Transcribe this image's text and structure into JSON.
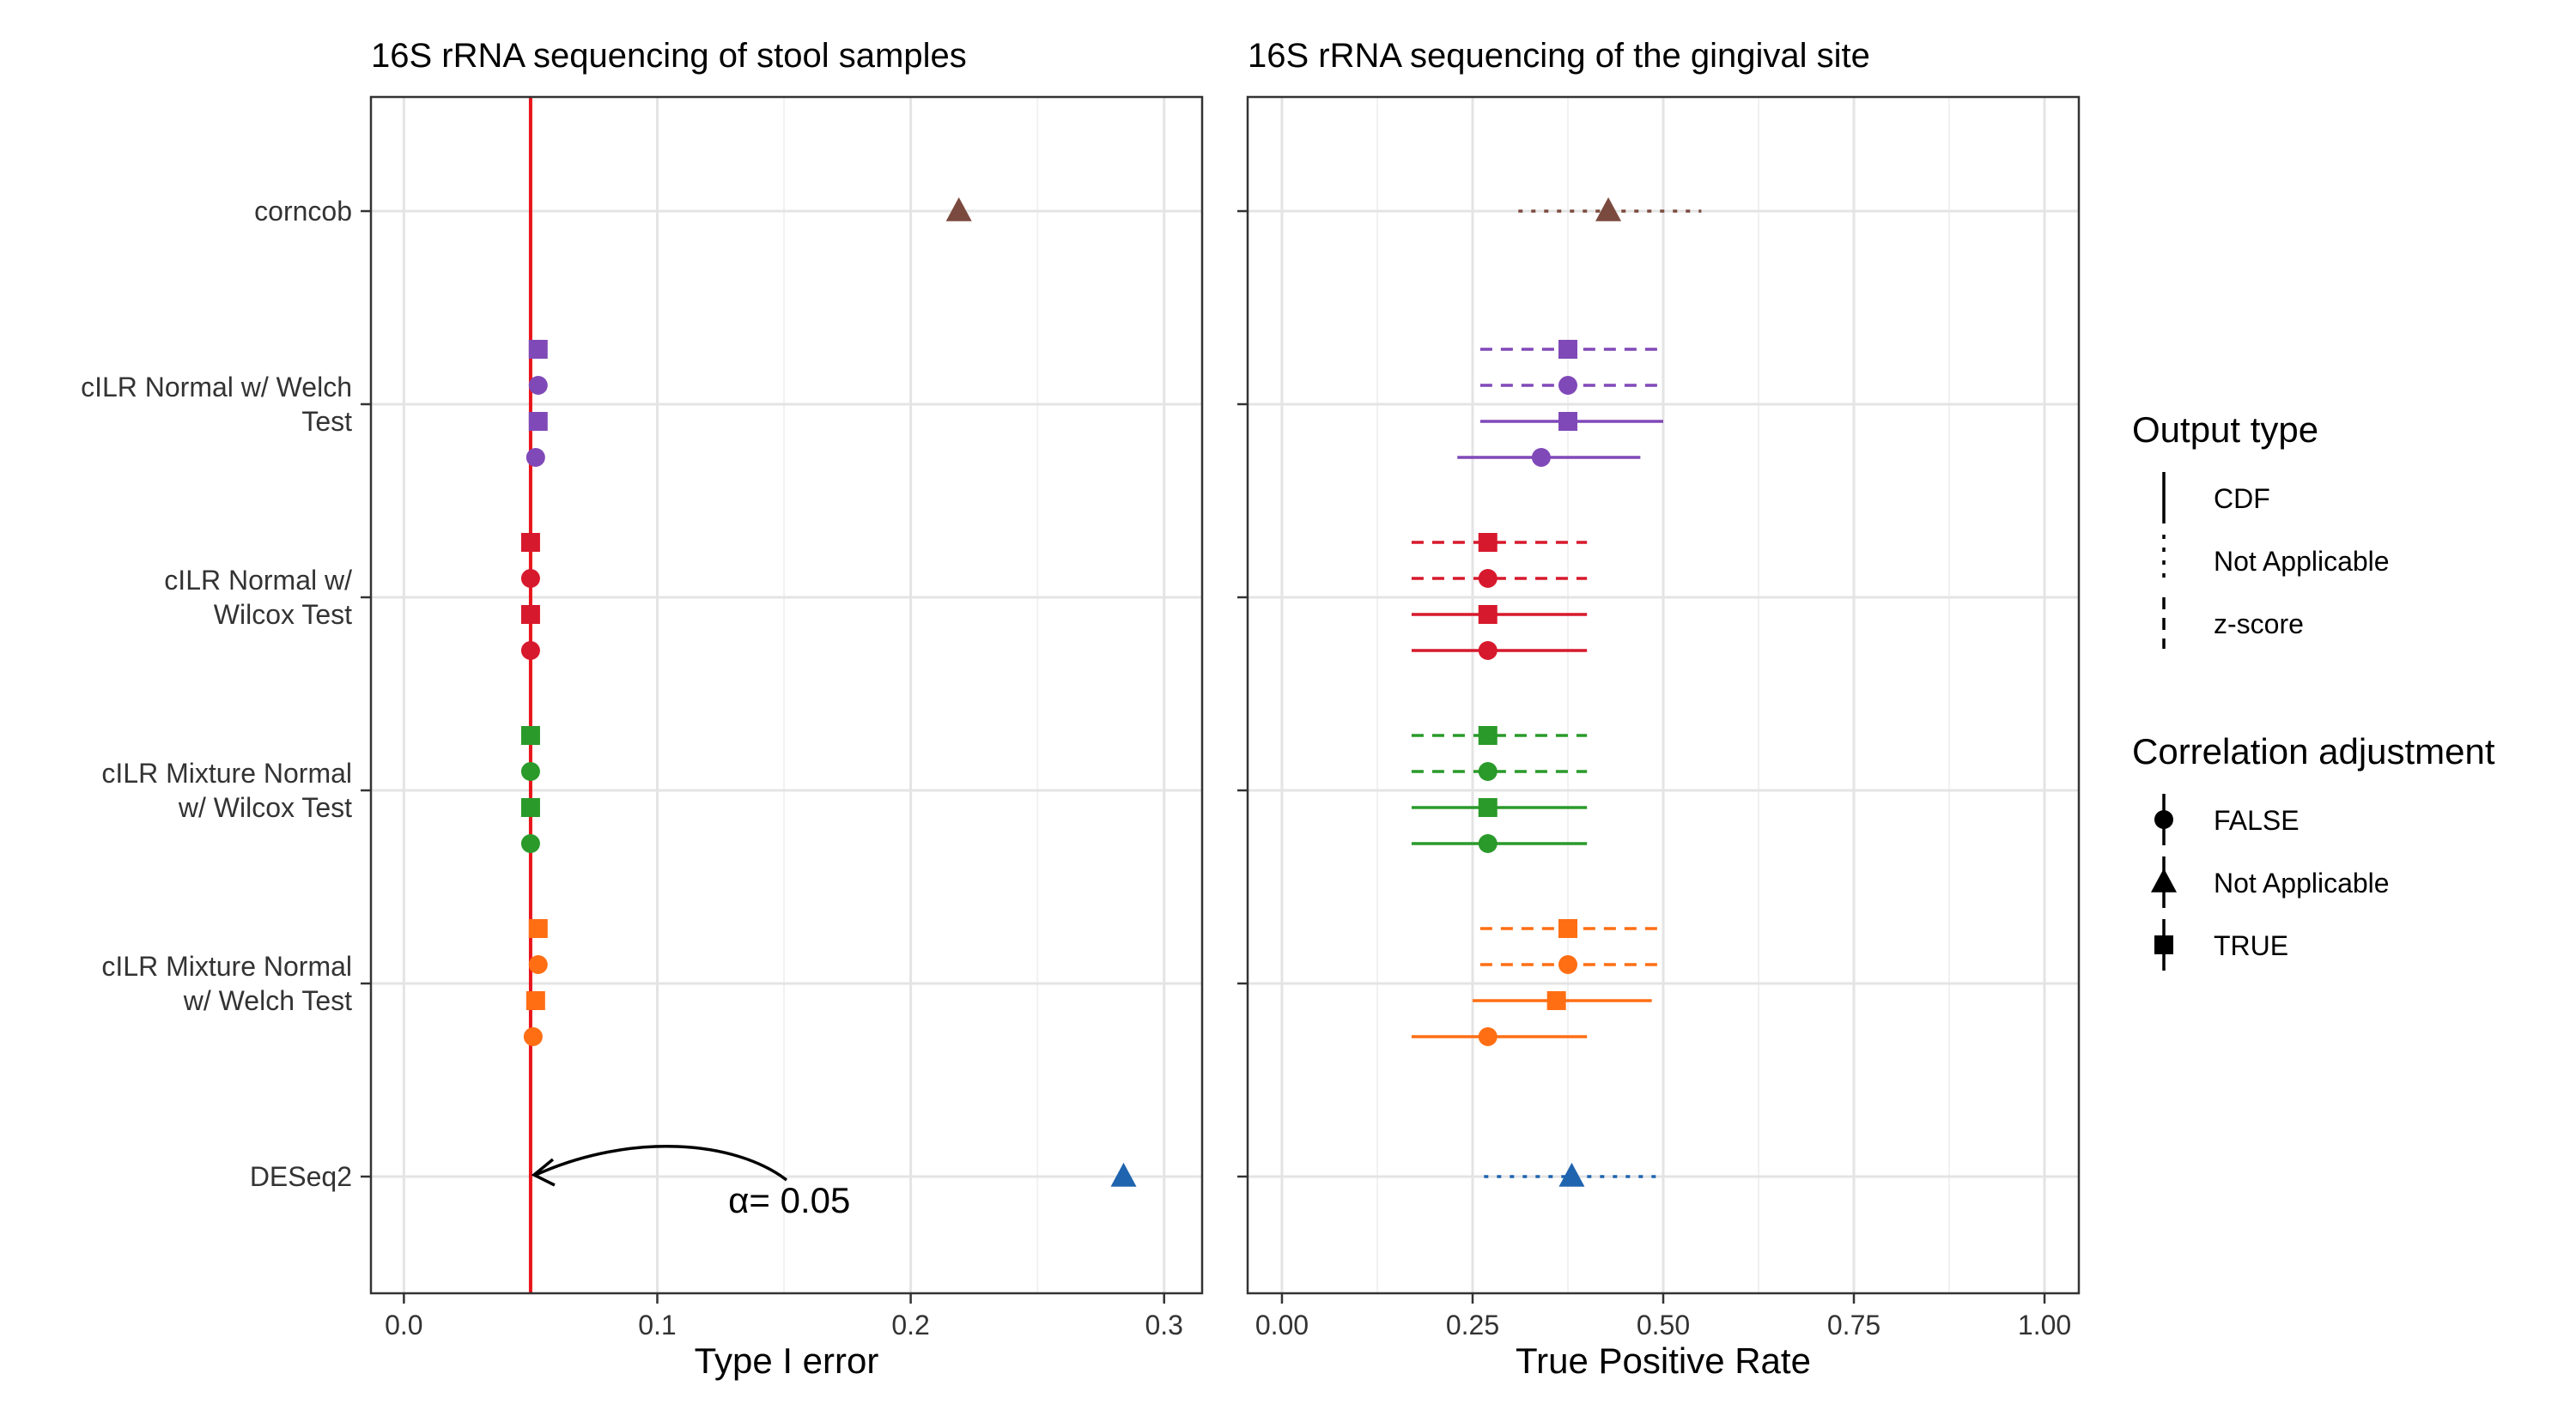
{
  "chart_data": {
    "type": "scatter",
    "categories": [
      "corncob",
      "cILR Normal w/ Welch\nTest",
      "cILR Normal w/\nWilcox Test",
      "cILR Mixture Normal\nw/ Wilcox Test",
      "cILR Mixture Normal\nw/ Welch Test",
      "DESeq2"
    ],
    "colors": {
      "corncob": "#7B4A3E",
      "cILR Normal w/ Welch\nTest": "#8049B8",
      "cILR Normal w/\nWilcox Test": "#D7192D",
      "cILR Mixture Normal\nw/ Wilcox Test": "#2A9A2A",
      "cILR Mixture Normal\nw/ Welch Test": "#FF6E13",
      "DESeq2": "#1E64AF"
    },
    "panels": [
      {
        "title": "16S rRNA sequencing of stool samples",
        "xlabel": "Type I error",
        "xlim": [
          -0.013,
          0.315
        ],
        "xticks": [
          {
            "value": 0,
            "label": "0.0"
          },
          {
            "value": 0.1,
            "label": "0.1"
          },
          {
            "value": 0.2,
            "label": "0.2"
          },
          {
            "value": 0.3,
            "label": "0.3"
          }
        ],
        "xminor": [
          0.05,
          0.15,
          0.25
        ],
        "reference_line": {
          "x": 0.05,
          "color": "#E8141B"
        },
        "annotation": {
          "text": "= 0.05",
          "symbol": "α",
          "x": 0.128,
          "category": "DESeq2",
          "arrow_from_x": 0.151,
          "arrow_to_x": 0.05,
          "arrow_peak_x": 0.1
        },
        "points": [
          {
            "category": "corncob",
            "output": "Not Applicable",
            "adjust": "Not Applicable",
            "x": 0.219
          },
          {
            "category": "cILR Normal w/ Welch\nTest",
            "output": "z-score",
            "adjust": "TRUE",
            "x": 0.053
          },
          {
            "category": "cILR Normal w/ Welch\nTest",
            "output": "z-score",
            "adjust": "FALSE",
            "x": 0.053
          },
          {
            "category": "cILR Normal w/ Welch\nTest",
            "output": "CDF",
            "adjust": "TRUE",
            "x": 0.053
          },
          {
            "category": "cILR Normal w/ Welch\nTest",
            "output": "CDF",
            "adjust": "FALSE",
            "x": 0.052
          },
          {
            "category": "cILR Normal w/\nWilcox Test",
            "output": "z-score",
            "adjust": "TRUE",
            "x": 0.05
          },
          {
            "category": "cILR Normal w/\nWilcox Test",
            "output": "z-score",
            "adjust": "FALSE",
            "x": 0.05
          },
          {
            "category": "cILR Normal w/\nWilcox Test",
            "output": "CDF",
            "adjust": "TRUE",
            "x": 0.05
          },
          {
            "category": "cILR Normal w/\nWilcox Test",
            "output": "CDF",
            "adjust": "FALSE",
            "x": 0.05
          },
          {
            "category": "cILR Mixture Normal\nw/ Wilcox Test",
            "output": "z-score",
            "adjust": "TRUE",
            "x": 0.05
          },
          {
            "category": "cILR Mixture Normal\nw/ Wilcox Test",
            "output": "z-score",
            "adjust": "FALSE",
            "x": 0.05
          },
          {
            "category": "cILR Mixture Normal\nw/ Wilcox Test",
            "output": "CDF",
            "adjust": "TRUE",
            "x": 0.05
          },
          {
            "category": "cILR Mixture Normal\nw/ Wilcox Test",
            "output": "CDF",
            "adjust": "FALSE",
            "x": 0.05
          },
          {
            "category": "cILR Mixture Normal\nw/ Welch Test",
            "output": "z-score",
            "adjust": "TRUE",
            "x": 0.053
          },
          {
            "category": "cILR Mixture Normal\nw/ Welch Test",
            "output": "z-score",
            "adjust": "FALSE",
            "x": 0.053
          },
          {
            "category": "cILR Mixture Normal\nw/ Welch Test",
            "output": "CDF",
            "adjust": "TRUE",
            "x": 0.052
          },
          {
            "category": "cILR Mixture Normal\nw/ Welch Test",
            "output": "CDF",
            "adjust": "FALSE",
            "x": 0.051
          },
          {
            "category": "DESeq2",
            "output": "Not Applicable",
            "adjust": "Not Applicable",
            "x": 0.284
          }
        ]
      },
      {
        "title": "16S rRNA sequencing of the gingival site",
        "xlabel": "True Positive Rate",
        "xlim": [
          -0.045,
          1.045
        ],
        "xticks": [
          {
            "value": 0,
            "label": "0.00"
          },
          {
            "value": 0.25,
            "label": "0.25"
          },
          {
            "value": 0.5,
            "label": "0.50"
          },
          {
            "value": 0.75,
            "label": "0.75"
          },
          {
            "value": 1,
            "label": "1.00"
          }
        ],
        "xminor": [
          0.125,
          0.375,
          0.625,
          0.875
        ],
        "points": [
          {
            "category": "corncob",
            "output": "Not Applicable",
            "adjust": "Not Applicable",
            "x": 0.428,
            "xmin": 0.31,
            "xmax": 0.55
          },
          {
            "category": "cILR Normal w/ Welch\nTest",
            "output": "z-score",
            "adjust": "TRUE",
            "x": 0.375,
            "xmin": 0.26,
            "xmax": 0.5
          },
          {
            "category": "cILR Normal w/ Welch\nTest",
            "output": "z-score",
            "adjust": "FALSE",
            "x": 0.375,
            "xmin": 0.26,
            "xmax": 0.5
          },
          {
            "category": "cILR Normal w/ Welch\nTest",
            "output": "CDF",
            "adjust": "TRUE",
            "x": 0.375,
            "xmin": 0.26,
            "xmax": 0.5
          },
          {
            "category": "cILR Normal w/ Welch\nTest",
            "output": "CDF",
            "adjust": "FALSE",
            "x": 0.34,
            "xmin": 0.23,
            "xmax": 0.47
          },
          {
            "category": "cILR Normal w/\nWilcox Test",
            "output": "z-score",
            "adjust": "TRUE",
            "x": 0.27,
            "xmin": 0.17,
            "xmax": 0.4
          },
          {
            "category": "cILR Normal w/\nWilcox Test",
            "output": "z-score",
            "adjust": "FALSE",
            "x": 0.27,
            "xmin": 0.17,
            "xmax": 0.4
          },
          {
            "category": "cILR Normal w/\nWilcox Test",
            "output": "CDF",
            "adjust": "TRUE",
            "x": 0.27,
            "xmin": 0.17,
            "xmax": 0.4
          },
          {
            "category": "cILR Normal w/\nWilcox Test",
            "output": "CDF",
            "adjust": "FALSE",
            "x": 0.27,
            "xmin": 0.17,
            "xmax": 0.4
          },
          {
            "category": "cILR Mixture Normal\nw/ Wilcox Test",
            "output": "z-score",
            "adjust": "TRUE",
            "x": 0.27,
            "xmin": 0.17,
            "xmax": 0.4
          },
          {
            "category": "cILR Mixture Normal\nw/ Wilcox Test",
            "output": "z-score",
            "adjust": "FALSE",
            "x": 0.27,
            "xmin": 0.17,
            "xmax": 0.4
          },
          {
            "category": "cILR Mixture Normal\nw/ Wilcox Test",
            "output": "CDF",
            "adjust": "TRUE",
            "x": 0.27,
            "xmin": 0.17,
            "xmax": 0.4
          },
          {
            "category": "cILR Mixture Normal\nw/ Wilcox Test",
            "output": "CDF",
            "adjust": "FALSE",
            "x": 0.27,
            "xmin": 0.17,
            "xmax": 0.4
          },
          {
            "category": "cILR Mixture Normal\nw/ Welch Test",
            "output": "z-score",
            "adjust": "TRUE",
            "x": 0.375,
            "xmin": 0.26,
            "xmax": 0.5
          },
          {
            "category": "cILR Mixture Normal\nw/ Welch Test",
            "output": "z-score",
            "adjust": "FALSE",
            "x": 0.375,
            "xmin": 0.26,
            "xmax": 0.5
          },
          {
            "category": "cILR Mixture Normal\nw/ Welch Test",
            "output": "CDF",
            "adjust": "TRUE",
            "x": 0.36,
            "xmin": 0.25,
            "xmax": 0.485
          },
          {
            "category": "cILR Mixture Normal\nw/ Welch Test",
            "output": "CDF",
            "adjust": "FALSE",
            "x": 0.27,
            "xmin": 0.17,
            "xmax": 0.4
          },
          {
            "category": "DESeq2",
            "output": "Not Applicable",
            "adjust": "Not Applicable",
            "x": 0.38,
            "xmin": 0.265,
            "xmax": 0.5
          }
        ]
      }
    ],
    "legend": {
      "placement": "right",
      "groups": [
        {
          "title": "Output type",
          "kind": "linetype",
          "entries": [
            {
              "label": "CDF",
              "style": "solid"
            },
            {
              "label": "Not Applicable",
              "style": "dotted"
            },
            {
              "label": "z-score",
              "style": "dashed"
            }
          ]
        },
        {
          "title": "Correlation adjustment",
          "kind": "shape",
          "entries": [
            {
              "label": "FALSE",
              "shape": "circle"
            },
            {
              "label": "Not Applicable",
              "shape": "triangle"
            },
            {
              "label": "TRUE",
              "shape": "square"
            }
          ]
        }
      ]
    }
  }
}
